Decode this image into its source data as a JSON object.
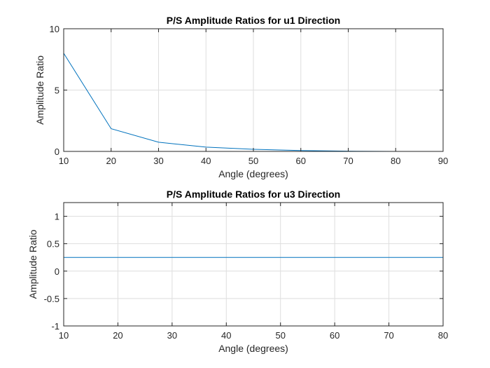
{
  "chart_data": [
    {
      "type": "line",
      "title": "P/S Amplitude Ratios for u1 Direction",
      "xlabel": "Angle (degrees)",
      "ylabel": "Amplitude Ratio",
      "xlim": [
        10,
        90
      ],
      "ylim": [
        0,
        10
      ],
      "xticks": [
        "10",
        "20",
        "30",
        "40",
        "50",
        "60",
        "70",
        "80",
        "90"
      ],
      "yticks": [
        "0",
        "5",
        "10"
      ],
      "grid": true,
      "line_color": "#0072BD",
      "series": [
        {
          "x": [
            10,
            20,
            30,
            40,
            50,
            60,
            70,
            80,
            90
          ],
          "values": [
            8.0,
            1.85,
            0.75,
            0.35,
            0.17,
            0.07,
            0.02,
            0.0,
            0.0
          ]
        }
      ]
    },
    {
      "type": "line",
      "title": "P/S Amplitude Ratios for u3 Direction",
      "xlabel": "Angle (degrees)",
      "ylabel": "Amplitude Ratio",
      "xlim": [
        10,
        80
      ],
      "ylim": [
        -1,
        1.25
      ],
      "xticks": [
        "10",
        "20",
        "30",
        "40",
        "50",
        "60",
        "70",
        "80"
      ],
      "yticks": [
        "-1",
        "-0.5",
        "0",
        "0.5",
        "1"
      ],
      "grid": true,
      "line_color": "#0072BD",
      "series": [
        {
          "x": [
            10,
            80
          ],
          "values": [
            0.25,
            0.25
          ]
        }
      ]
    }
  ]
}
